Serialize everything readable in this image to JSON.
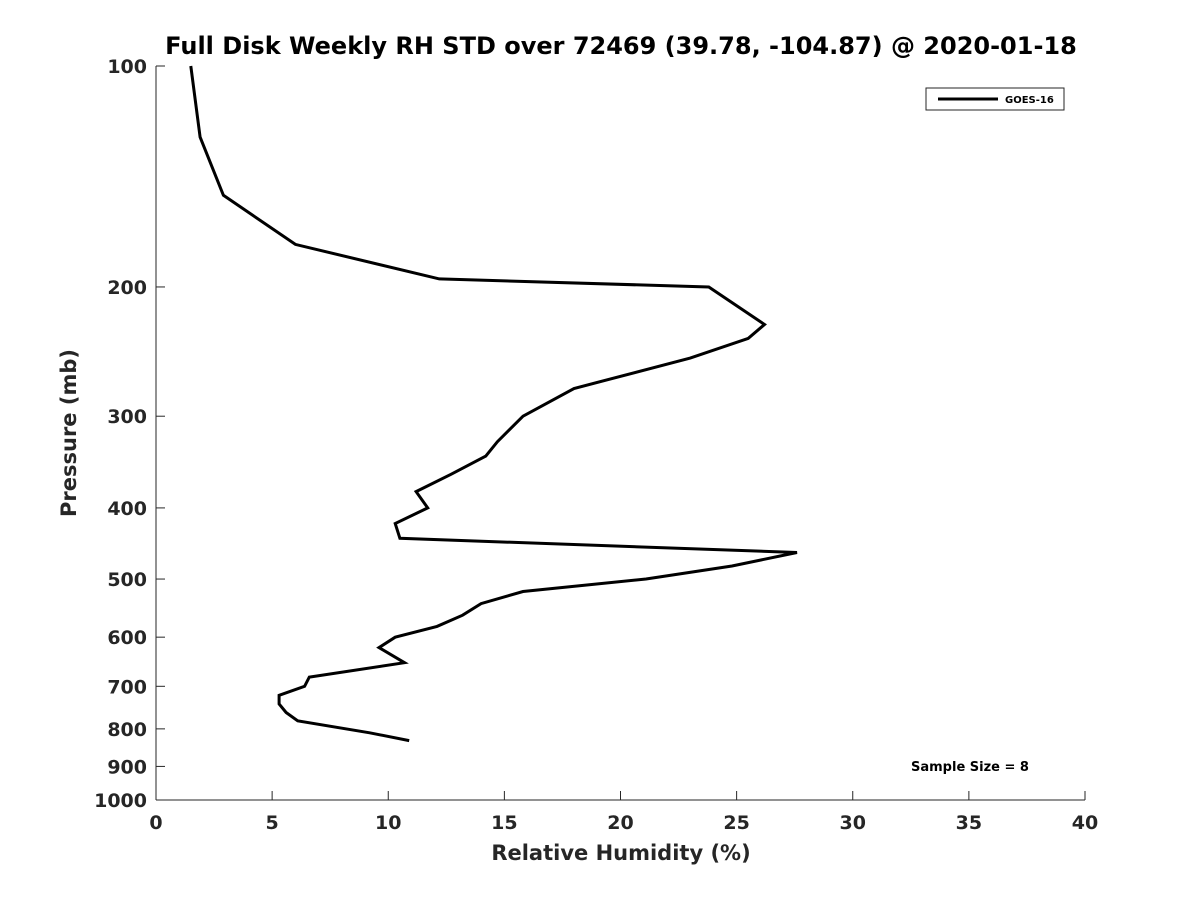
{
  "chart_data": {
    "type": "line",
    "title": "Full Disk Weekly RH STD over 72469 (39.78, -104.87) @ 2020-01-18",
    "xlabel": "Relative Humidity (%)",
    "ylabel": "Pressure (mb)",
    "xlim": [
      0,
      40
    ],
    "ylim": [
      1000,
      100
    ],
    "yscale": "log",
    "y_reversed": true,
    "x_ticks": [
      0,
      5,
      10,
      15,
      20,
      25,
      30,
      35,
      40
    ],
    "y_ticks": [
      100,
      200,
      300,
      400,
      500,
      600,
      700,
      800,
      900,
      1000
    ],
    "grid": false,
    "legend_placement": "top-right",
    "series": [
      {
        "name": "GOES-16",
        "color": "#000000",
        "points": [
          {
            "x": 1.5,
            "y": 100
          },
          {
            "x": 1.9,
            "y": 125
          },
          {
            "x": 2.9,
            "y": 150
          },
          {
            "x": 6.0,
            "y": 175
          },
          {
            "x": 12.2,
            "y": 195
          },
          {
            "x": 23.8,
            "y": 200
          },
          {
            "x": 26.2,
            "y": 225
          },
          {
            "x": 25.5,
            "y": 235
          },
          {
            "x": 23.0,
            "y": 250
          },
          {
            "x": 18.0,
            "y": 275
          },
          {
            "x": 15.8,
            "y": 300
          },
          {
            "x": 14.7,
            "y": 325
          },
          {
            "x": 14.2,
            "y": 340
          },
          {
            "x": 12.7,
            "y": 360
          },
          {
            "x": 11.2,
            "y": 380
          },
          {
            "x": 11.7,
            "y": 400
          },
          {
            "x": 10.3,
            "y": 420
          },
          {
            "x": 10.5,
            "y": 440
          },
          {
            "x": 27.6,
            "y": 460
          },
          {
            "x": 24.8,
            "y": 480
          },
          {
            "x": 21.1,
            "y": 500
          },
          {
            "x": 15.8,
            "y": 520
          },
          {
            "x": 14.0,
            "y": 540
          },
          {
            "x": 13.2,
            "y": 560
          },
          {
            "x": 12.1,
            "y": 580
          },
          {
            "x": 10.3,
            "y": 600
          },
          {
            "x": 9.6,
            "y": 620
          },
          {
            "x": 10.7,
            "y": 650
          },
          {
            "x": 6.6,
            "y": 680
          },
          {
            "x": 6.4,
            "y": 700
          },
          {
            "x": 5.3,
            "y": 720
          },
          {
            "x": 5.3,
            "y": 740
          },
          {
            "x": 5.6,
            "y": 760
          },
          {
            "x": 6.1,
            "y": 780
          },
          {
            "x": 9.2,
            "y": 810
          },
          {
            "x": 10.9,
            "y": 830
          }
        ]
      }
    ],
    "annotations": [
      "Sample Size = 8"
    ]
  }
}
